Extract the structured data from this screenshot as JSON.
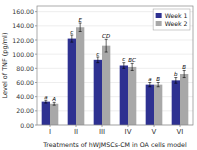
{
  "chart_data": {
    "type": "bar",
    "categories": [
      "I",
      "II",
      "III",
      "IV",
      "V",
      "VI"
    ],
    "series": [
      {
        "name": "Week 1",
        "color": "#2E3191",
        "values": [
          33,
          122,
          92,
          84,
          57,
          63
        ],
        "errors": [
          2,
          5,
          4,
          4,
          3,
          4
        ],
        "annotations": [
          "a",
          "c",
          "c",
          "c",
          "a",
          "b"
        ]
      },
      {
        "name": "Week 2",
        "color": "#A8A8A8",
        "values": [
          30,
          138,
          112,
          82,
          57,
          72
        ],
        "errors": [
          2,
          6,
          9,
          5,
          3,
          5
        ],
        "annotations": [
          "A",
          "E",
          "CD",
          "BC",
          "B",
          "B"
        ]
      }
    ],
    "xlabel": "Treatments of hWJMSCs-CM in OA cells model",
    "ylabel": "Level of TNF (pg/ml)",
    "ylim": [
      0,
      168
    ],
    "yticks": [
      {
        "value": 0,
        "label": "0.00"
      },
      {
        "value": 20,
        "label": "20.00"
      },
      {
        "value": 40,
        "label": "40.00"
      },
      {
        "value": 60,
        "label": "60.00"
      },
      {
        "value": 80,
        "label": "80.00"
      },
      {
        "value": 100,
        "label": "100.00"
      },
      {
        "value": 120,
        "label": "120.00"
      },
      {
        "value": 140,
        "label": "140.00"
      },
      {
        "value": 160,
        "label": "160.00"
      }
    ],
    "grid": true,
    "legend": "upper right"
  }
}
